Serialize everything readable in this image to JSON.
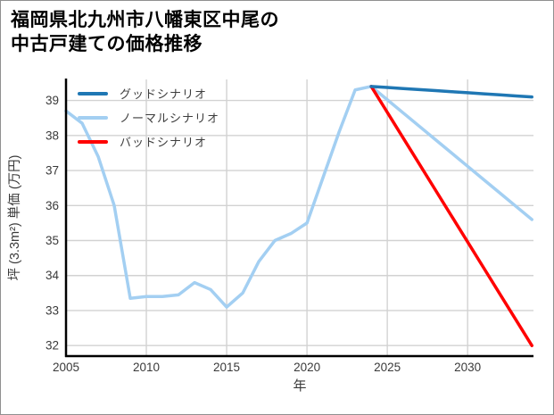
{
  "title": {
    "lines": [
      "福岡県北九州市八幡東区中尾の",
      "中古戸建ての価格推移"
    ]
  },
  "chart_data": {
    "type": "line",
    "title": "福岡県北九州市八幡東区中尾の中古戸建ての価格推移",
    "xlabel": "年",
    "ylabel": "坪 (3.3m²) 単価 (万円)",
    "xlim": [
      2005,
      2034.1
    ],
    "ylim": [
      31.7,
      39.6
    ],
    "xticks": [
      2005,
      2010,
      2015,
      2020,
      2025,
      2030
    ],
    "yticks": [
      32,
      33,
      34,
      35,
      36,
      37,
      38,
      39
    ],
    "grid": true,
    "legend_position": "upper-left",
    "colors": {
      "good": "#1f77b4",
      "normal": "#a3cff2",
      "bad": "#ff0000",
      "gridline": "#d2d2d2",
      "spine": "#000000",
      "tick_text": "#3a3a3a"
    },
    "series": [
      {
        "name": "グッドシナリオ",
        "color": "#1f77b4",
        "x": [
          2024,
          2025,
          2026,
          2027,
          2028,
          2029,
          2030,
          2031,
          2032,
          2033,
          2034
        ],
        "values": [
          39.4,
          39.37,
          39.34,
          39.31,
          39.28,
          39.25,
          39.22,
          39.19,
          39.16,
          39.13,
          39.1
        ]
      },
      {
        "name": "ノーマルシナリオ",
        "color": "#a3cff2",
        "x": [
          2005,
          2006,
          2007,
          2008,
          2009,
          2010,
          2011,
          2012,
          2013,
          2014,
          2015,
          2016,
          2017,
          2018,
          2019,
          2020,
          2021,
          2022,
          2023,
          2024,
          2025,
          2026,
          2027,
          2028,
          2029,
          2030,
          2031,
          2032,
          2033,
          2034
        ],
        "values": [
          38.7,
          38.35,
          37.4,
          36.0,
          33.35,
          33.4,
          33.4,
          33.45,
          33.8,
          33.6,
          33.1,
          33.5,
          34.4,
          35.0,
          35.2,
          35.5,
          36.8,
          38.1,
          39.3,
          39.4,
          39.02,
          38.64,
          38.26,
          37.88,
          37.5,
          37.12,
          36.74,
          36.36,
          35.98,
          35.6
        ]
      },
      {
        "name": "バッドシナリオ",
        "color": "#ff0000",
        "x": [
          2024,
          2025,
          2026,
          2027,
          2028,
          2029,
          2030,
          2031,
          2032,
          2033,
          2034
        ],
        "values": [
          39.4,
          38.66,
          37.92,
          37.18,
          36.44,
          35.7,
          34.96,
          34.22,
          33.48,
          32.74,
          32.0
        ]
      }
    ]
  }
}
